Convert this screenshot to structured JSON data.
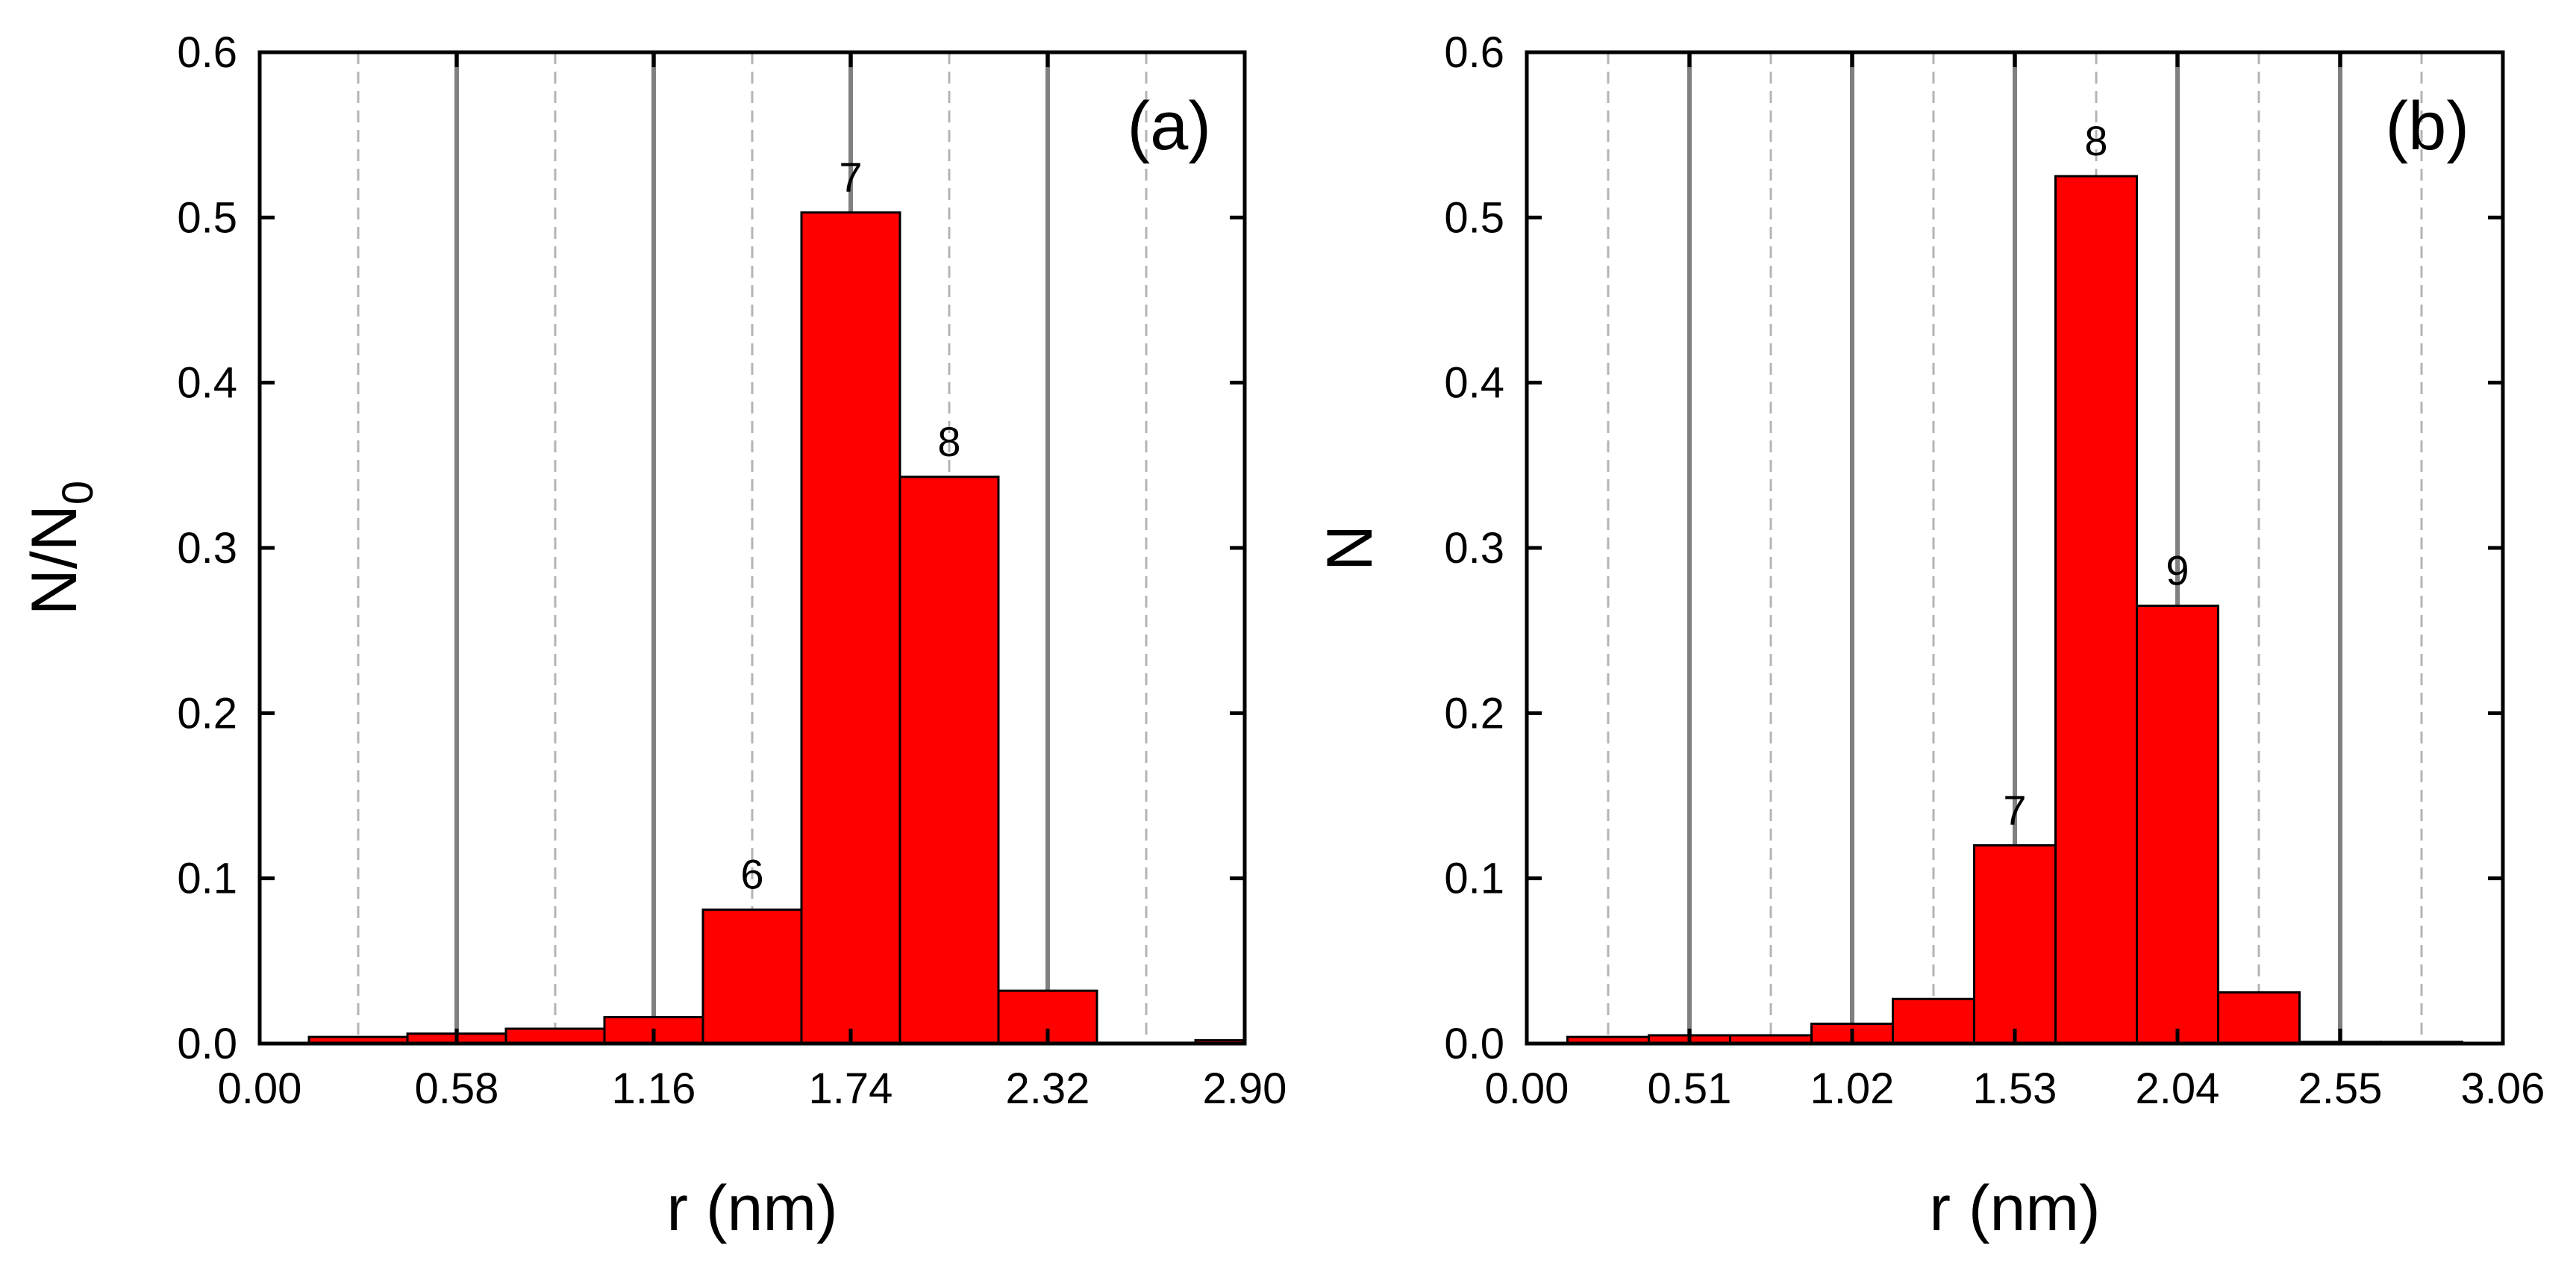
{
  "chart_data": [
    {
      "type": "bar",
      "panel_label": "(a)",
      "title": "",
      "xlabel": "r (nm)",
      "ylabel": "N/N",
      "ylabel_subscript": "0",
      "xlim": [
        0,
        2.9
      ],
      "ylim": [
        0,
        0.6
      ],
      "xticks": [
        "0.00",
        "0.58",
        "1.16",
        "1.74",
        "2.32",
        "2.90"
      ],
      "yticks": [
        "0.0",
        "0.1",
        "0.2",
        "0.3",
        "0.4",
        "0.5",
        "0.6"
      ],
      "grid_solid_x": [
        0.58,
        1.16,
        1.74,
        2.32
      ],
      "grid_dashed_x": [
        0.29,
        0.87,
        1.45,
        2.03,
        2.61
      ],
      "bars": [
        {
          "x0": 0.145,
          "x1": 0.435,
          "value": 0.004,
          "label": ""
        },
        {
          "x0": 0.435,
          "x1": 0.725,
          "value": 0.006,
          "label": ""
        },
        {
          "x0": 0.725,
          "x1": 1.015,
          "value": 0.009,
          "label": ""
        },
        {
          "x0": 1.015,
          "x1": 1.305,
          "value": 0.016,
          "label": ""
        },
        {
          "x0": 1.305,
          "x1": 1.595,
          "value": 0.081,
          "label": "6"
        },
        {
          "x0": 1.595,
          "x1": 1.885,
          "value": 0.503,
          "label": "7"
        },
        {
          "x0": 1.885,
          "x1": 2.175,
          "value": 0.343,
          "label": "8"
        },
        {
          "x0": 2.175,
          "x1": 2.465,
          "value": 0.032,
          "label": ""
        },
        {
          "x0": 2.465,
          "x1": 2.755,
          "value": 0.0005,
          "label": ""
        },
        {
          "x0": 2.755,
          "x1": 2.9,
          "value": 0.002,
          "label": ""
        }
      ]
    },
    {
      "type": "bar",
      "panel_label": "(b)",
      "title": "",
      "xlabel": "r (nm)",
      "ylabel": "N",
      "ylabel_subscript": "",
      "xlim": [
        0,
        3.06
      ],
      "ylim": [
        0,
        0.6
      ],
      "xticks": [
        "0.00",
        "0.51",
        "1.02",
        "1.53",
        "2.04",
        "2.55",
        "3.06"
      ],
      "yticks": [
        "0.0",
        "0.1",
        "0.2",
        "0.3",
        "0.4",
        "0.5",
        "0.6"
      ],
      "grid_solid_x": [
        0.51,
        1.02,
        1.53,
        2.04,
        2.55
      ],
      "grid_dashed_x": [
        0.255,
        0.765,
        1.275,
        1.785,
        2.295,
        2.805
      ],
      "bars": [
        {
          "x0": 0.1275,
          "x1": 0.3825,
          "value": 0.004,
          "label": ""
        },
        {
          "x0": 0.3825,
          "x1": 0.6375,
          "value": 0.005,
          "label": ""
        },
        {
          "x0": 0.6375,
          "x1": 0.8925,
          "value": 0.005,
          "label": ""
        },
        {
          "x0": 0.8925,
          "x1": 1.1475,
          "value": 0.012,
          "label": ""
        },
        {
          "x0": 1.1475,
          "x1": 1.4025,
          "value": 0.027,
          "label": ""
        },
        {
          "x0": 1.4025,
          "x1": 1.6575,
          "value": 0.12,
          "label": "7"
        },
        {
          "x0": 1.6575,
          "x1": 1.9125,
          "value": 0.525,
          "label": "8"
        },
        {
          "x0": 1.9125,
          "x1": 2.1675,
          "value": 0.265,
          "label": "9"
        },
        {
          "x0": 2.1675,
          "x1": 2.4225,
          "value": 0.031,
          "label": ""
        },
        {
          "x0": 2.4225,
          "x1": 2.6775,
          "value": 0.001,
          "label": ""
        },
        {
          "x0": 2.6775,
          "x1": 2.9325,
          "value": 0.001,
          "label": ""
        }
      ]
    }
  ],
  "colors": {
    "bar_fill": "#ff0000",
    "bar_stroke": "#000000",
    "grid_solid": "#808080",
    "grid_dashed": "#b4b4b4",
    "axis": "#000000"
  }
}
